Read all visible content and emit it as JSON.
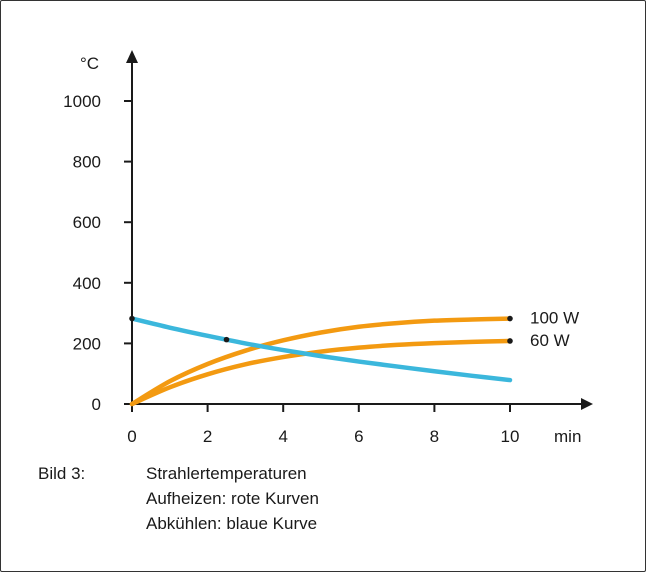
{
  "chart_data": {
    "type": "line",
    "ylabel": "°C",
    "xlabel": "min",
    "xlim": [
      0,
      10
    ],
    "ylim": [
      0,
      1000
    ],
    "x_ticks": [
      0,
      2,
      4,
      6,
      8,
      10
    ],
    "y_ticks": [
      0,
      200,
      400,
      600,
      800,
      1000
    ],
    "series": [
      {
        "name": "100 W",
        "color": "#f39a11",
        "x": [
          0,
          1,
          2,
          3,
          4,
          5,
          6,
          7,
          8,
          9,
          10
        ],
        "y": [
          0,
          75,
          132,
          176,
          210,
          236,
          255,
          267,
          275,
          279,
          282
        ],
        "marker_x": 10
      },
      {
        "name": "60 W",
        "color": "#f39a11",
        "x": [
          0,
          1,
          2,
          3,
          4,
          5,
          6,
          7,
          8,
          9,
          10
        ],
        "y": [
          0,
          55,
          98,
          131,
          155,
          173,
          186,
          195,
          201,
          205,
          208
        ],
        "marker_x": 10
      },
      {
        "color": "#3bb7dc",
        "x": [
          0,
          1,
          2,
          3,
          4,
          5,
          6,
          7,
          8,
          9,
          10
        ],
        "y": [
          282,
          252,
          225,
          200,
          178,
          158,
          140,
          124,
          108,
          93,
          79
        ],
        "marker_x": [
          0,
          2.5
        ]
      }
    ],
    "legend_placement": "right, at curve ends",
    "grid": false
  },
  "caption": {
    "number": "Bild 3:",
    "lines": [
      "Strahlertemperaturen",
      "Aufheizen: rote Kurven",
      "Abkühlen: blaue Kurve"
    ]
  }
}
